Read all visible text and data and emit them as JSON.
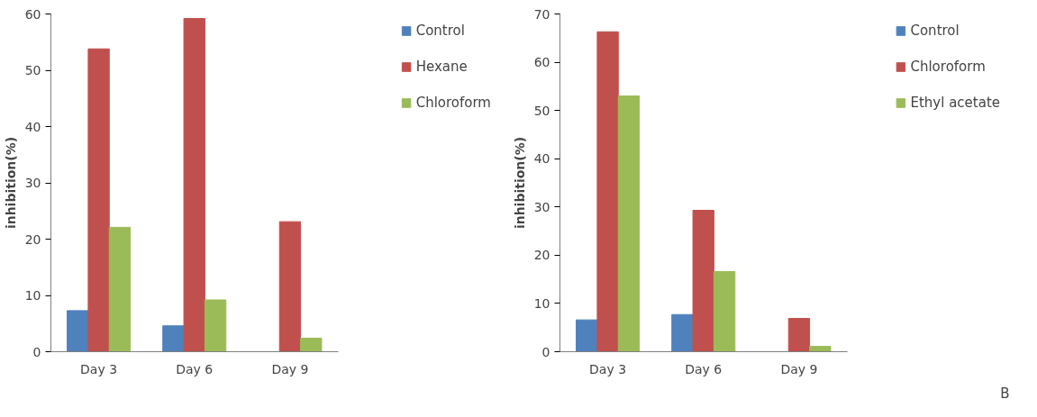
{
  "chart_data": [
    {
      "type": "bar",
      "ylabel": "inhibition(%)",
      "categories": [
        "Day 3",
        "Day 6",
        "Day 9"
      ],
      "ylim": [
        0,
        60
      ],
      "yticks": [
        0,
        10,
        20,
        30,
        40,
        50,
        60
      ],
      "grid": false,
      "legend": "right",
      "series": [
        {
          "name": "Control",
          "color": "#4f81bd",
          "values": [
            7.3,
            4.6,
            0
          ]
        },
        {
          "name": "Hexane",
          "color": "#c0504d",
          "values": [
            53.8,
            59.2,
            23.1
          ]
        },
        {
          "name": "Chloroform",
          "color": "#9bbb59",
          "values": [
            22.1,
            9.2,
            2.4
          ]
        }
      ]
    },
    {
      "type": "bar",
      "ylabel": "inhibition(%)",
      "categories": [
        "Day 3",
        "Day 6",
        "Day 9"
      ],
      "ylim": [
        0,
        70
      ],
      "yticks": [
        0,
        10,
        20,
        30,
        40,
        50,
        60,
        70
      ],
      "grid": false,
      "legend": "right",
      "annotations": [
        "B"
      ],
      "series": [
        {
          "name": "Control",
          "color": "#4f81bd",
          "values": [
            6.6,
            7.7,
            0
          ]
        },
        {
          "name": "Chloroform",
          "color": "#c0504d",
          "values": [
            66.3,
            29.3,
            6.9
          ]
        },
        {
          "name": "Ethyl acetate",
          "color": "#9bbb59",
          "values": [
            53.0,
            16.6,
            1.1
          ]
        }
      ]
    }
  ]
}
